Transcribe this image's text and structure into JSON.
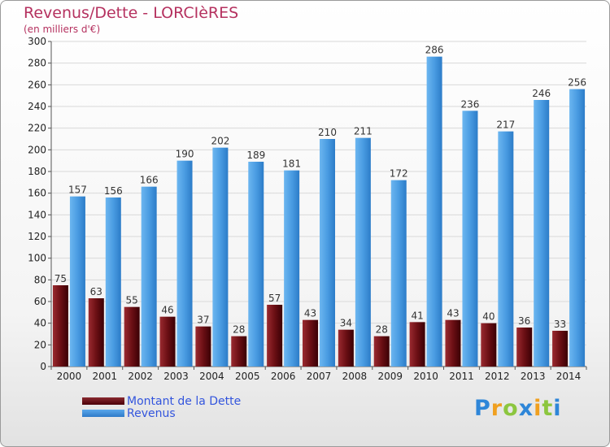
{
  "chart_data": {
    "type": "bar",
    "title": "Revenus/Dette - LORCIèRES",
    "subtitle": "(en milliers d'€)",
    "categories": [
      "2000",
      "2001",
      "2002",
      "2003",
      "2004",
      "2005",
      "2006",
      "2007",
      "2008",
      "2009",
      "2010",
      "2011",
      "2012",
      "2013",
      "2014"
    ],
    "series": [
      {
        "name": "Montant de la Dette",
        "color": "#6b0f14",
        "values": [
          75,
          63,
          55,
          46,
          37,
          28,
          57,
          43,
          34,
          28,
          41,
          43,
          40,
          36,
          33
        ]
      },
      {
        "name": "Revenus",
        "color": "#3d8fd9",
        "values": [
          157,
          156,
          166,
          190,
          202,
          189,
          181,
          210,
          211,
          172,
          286,
          236,
          217,
          246,
          256
        ]
      }
    ],
    "ylim": [
      0,
      300
    ],
    "ystep": 20,
    "grid": true,
    "legend": "bottom-left"
  },
  "logo": {
    "letters": [
      "P",
      "r",
      "o",
      "x",
      "i",
      "t",
      "i"
    ],
    "colors": [
      "#2e86d8",
      "#f0a020",
      "#8cc63f",
      "#2e86d8",
      "#f0a020",
      "#8cc63f",
      "#2e86d8"
    ]
  }
}
